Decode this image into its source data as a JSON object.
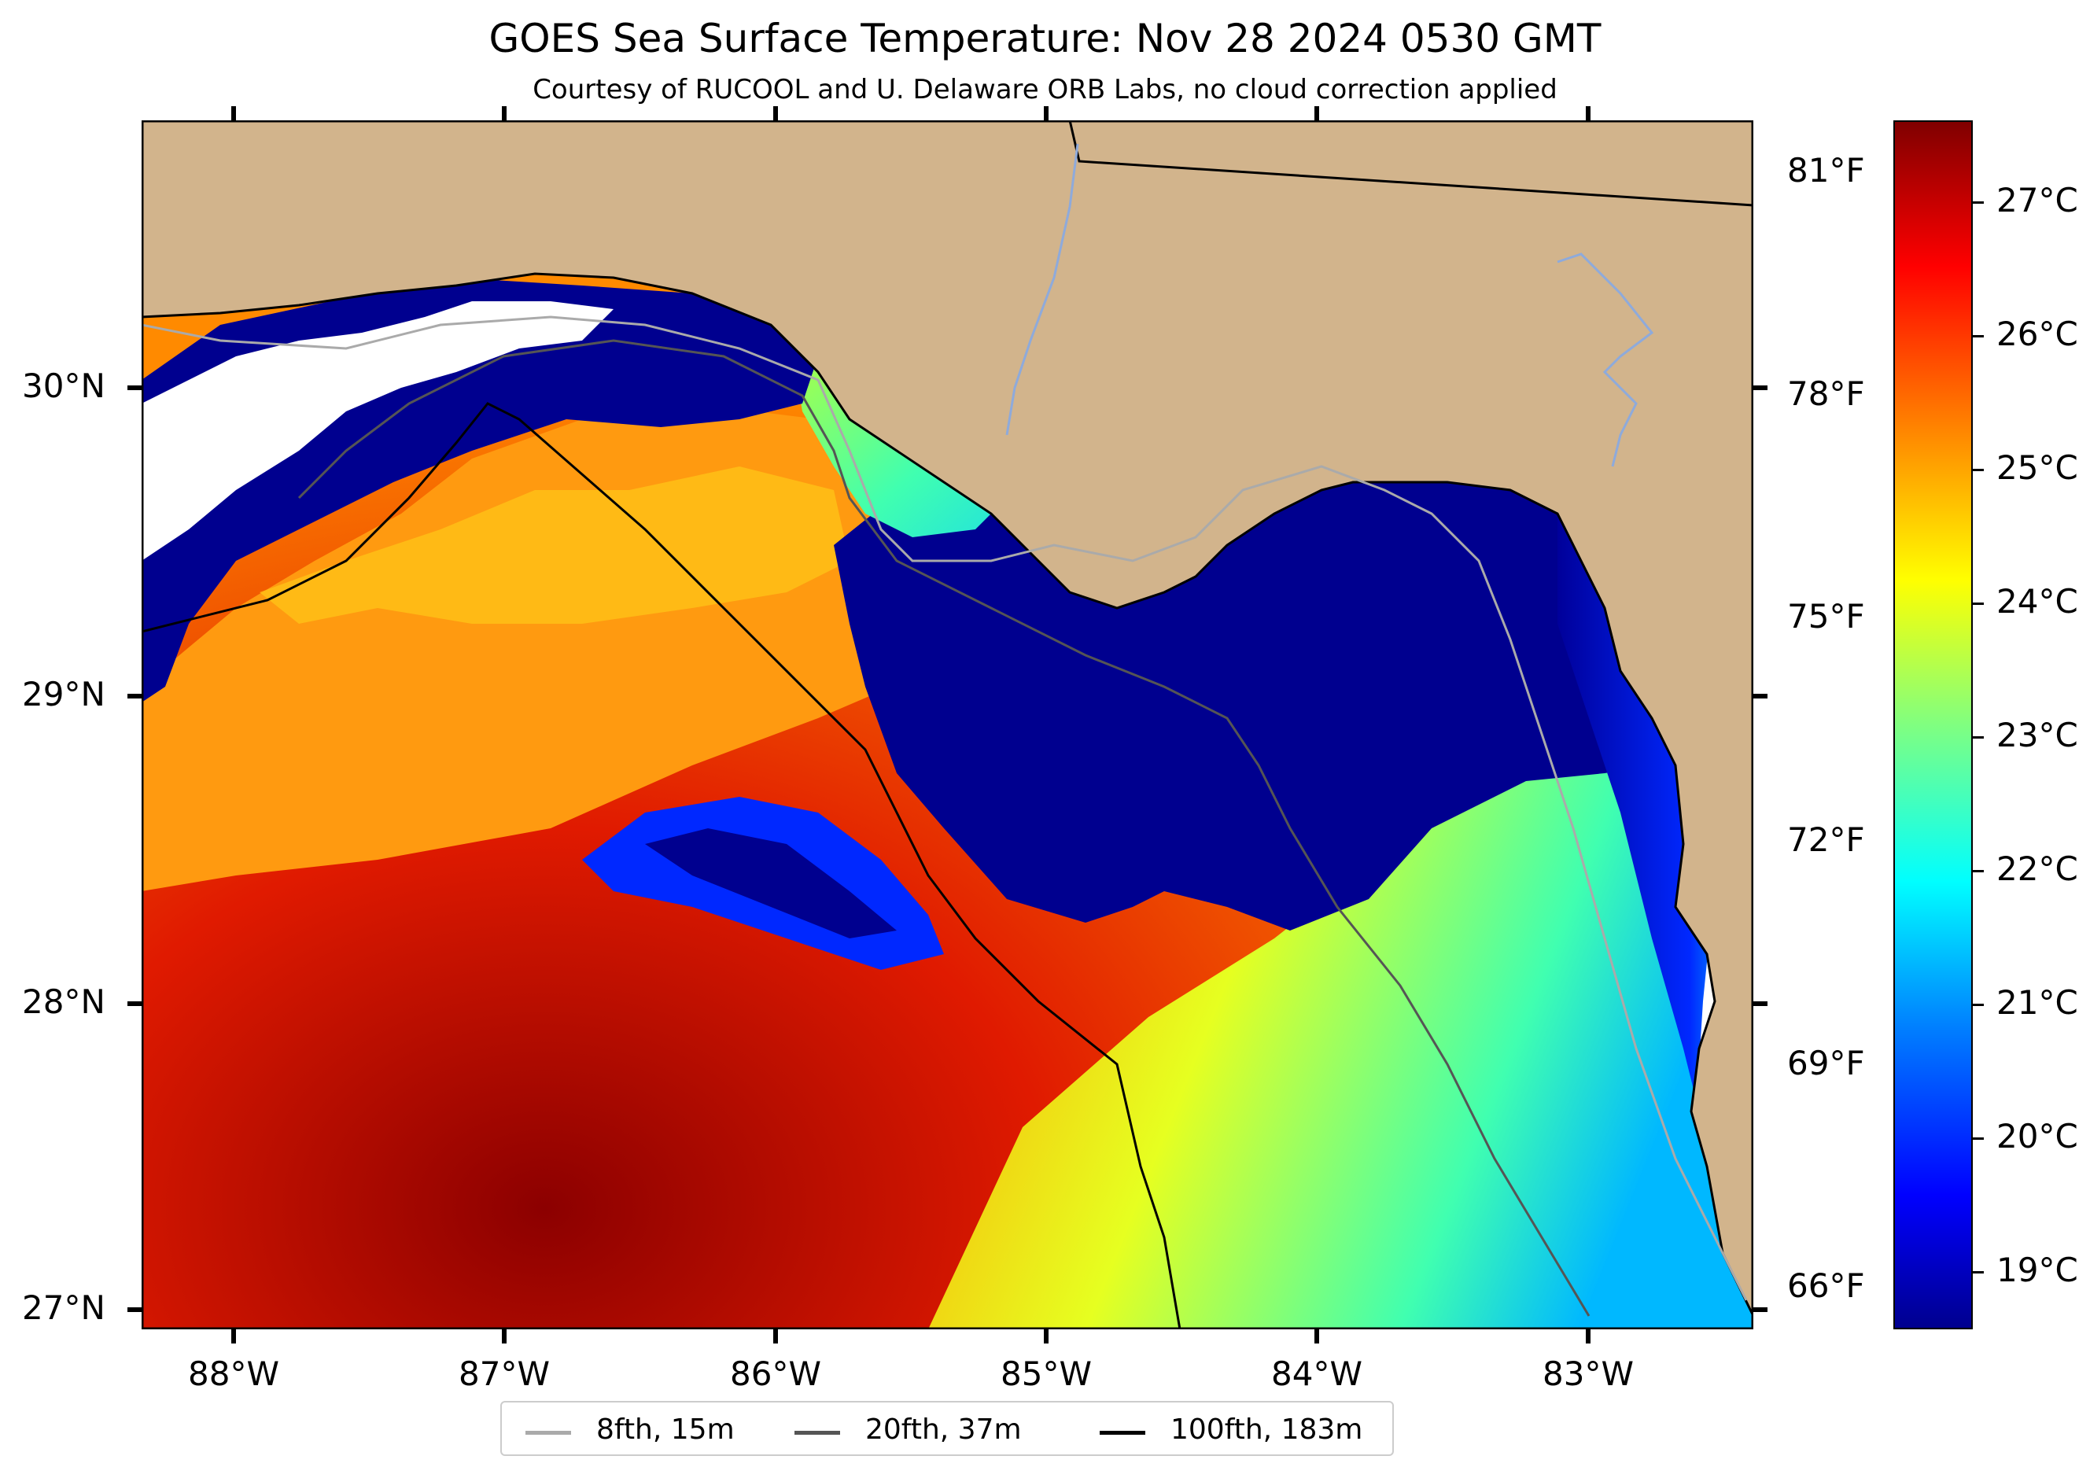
{
  "title": "GOES Sea Surface Temperature: Nov 28 2024 0530 GMT",
  "subtitle": "Courtesy of RUCOOL and U. Delaware ORB Labs, no cloud correction applied",
  "map": {
    "lat_labels": [
      "30°N",
      "29°N",
      "28°N",
      "27°N"
    ],
    "lon_labels": [
      "88°W",
      "87°W",
      "86°W",
      "85°W",
      "84°W",
      "83°W"
    ],
    "fahrenheit_labels": [
      "81°F",
      "78°F",
      "75°F",
      "72°F",
      "69°F",
      "66°F"
    ],
    "colors": {
      "land": "#d2b48c",
      "cloud_mask": "#ffffff",
      "warm": "#c80000",
      "cold": "#00008f"
    }
  },
  "colorbar": {
    "labels": [
      "27°C",
      "26°C",
      "25°C",
      "24°C",
      "23°C",
      "22°C",
      "21°C",
      "20°C",
      "19°C"
    ],
    "range_c": [
      18.6,
      27.6
    ],
    "colormap": "jet"
  },
  "legend": {
    "items": [
      {
        "label": "8fth, 15m",
        "color": "#aaaaaa"
      },
      {
        "label": "20fth, 37m",
        "color": "#555555"
      },
      {
        "label": "100fth, 183m",
        "color": "#000000"
      }
    ]
  }
}
